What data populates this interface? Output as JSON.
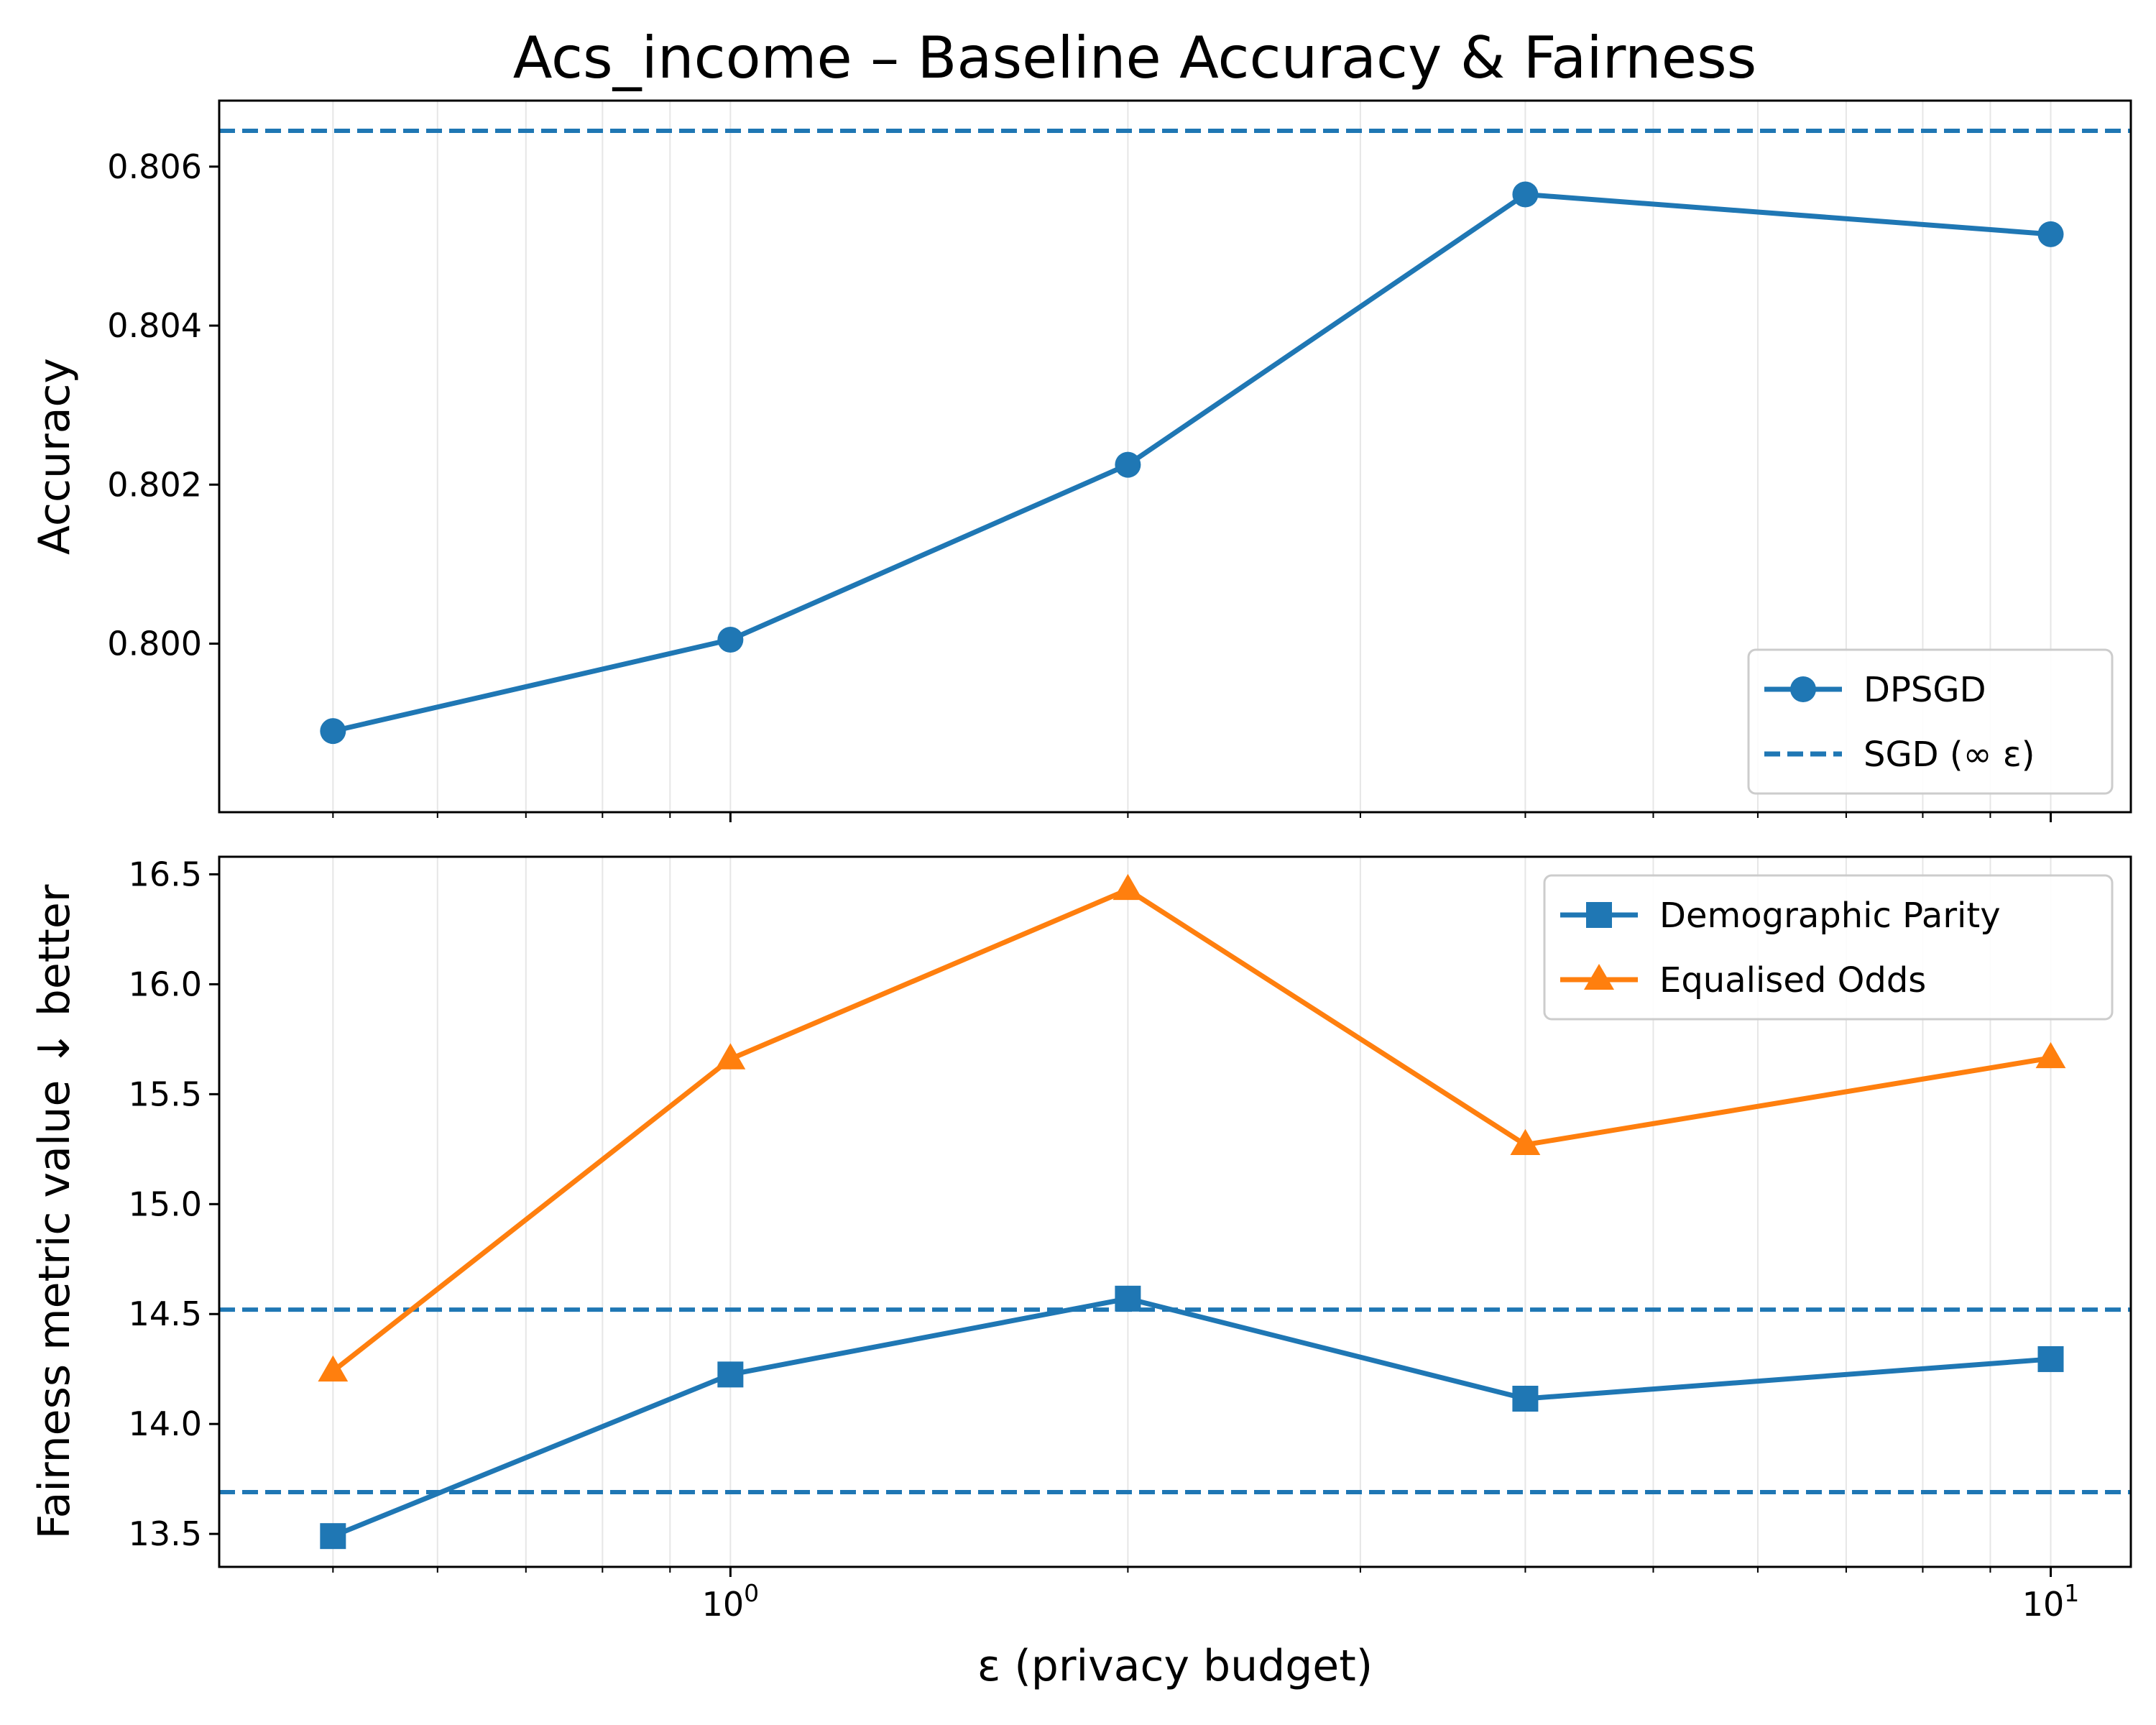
{
  "chart_data": [
    {
      "type": "line",
      "title": "Acs_income – Baseline Accuracy & Fairness",
      "xlabel": "",
      "ylabel": "Accuracy",
      "xscale": "log",
      "xlim": [
        0.41,
        11.5
      ],
      "ylim": [
        0.79788,
        0.80683
      ],
      "grid": "x-major-and-minor",
      "legend_position": "lower-right",
      "x": [
        0.5,
        1,
        2,
        4,
        10
      ],
      "series": [
        {
          "name": "DPSGD",
          "marker": "circle",
          "style": "solid",
          "color": "#1f77b4",
          "values": [
            0.7989,
            0.80005,
            0.80225,
            0.80565,
            0.80515
          ]
        }
      ],
      "reference_lines": [
        {
          "name": "SGD (∞ ε)",
          "style": "dashed",
          "color": "#1f77b4",
          "y": 0.80645
        }
      ],
      "yticks": [
        {
          "value": 0.8,
          "label": "0.800"
        },
        {
          "value": 0.802,
          "label": "0.802"
        },
        {
          "value": 0.804,
          "label": "0.804"
        },
        {
          "value": 0.806,
          "label": "0.806"
        }
      ]
    },
    {
      "type": "line",
      "title": "",
      "xlabel": "ε (privacy budget)",
      "ylabel": "Fairness metric value ↓ better",
      "xscale": "log",
      "xlim": [
        0.41,
        11.5
      ],
      "ylim": [
        13.35,
        16.58
      ],
      "grid": "x-major-and-minor",
      "legend_position": "upper-right",
      "x": [
        0.5,
        1,
        2,
        4,
        10
      ],
      "series": [
        {
          "name": "Demographic Parity",
          "marker": "square",
          "style": "solid",
          "color": "#1f77b4",
          "values": [
            13.49,
            14.225,
            14.57,
            14.115,
            14.295
          ]
        },
        {
          "name": "Equalised Odds",
          "marker": "triangle",
          "style": "solid",
          "color": "#ff7f0e",
          "values": [
            14.24,
            15.66,
            16.43,
            15.27,
            15.665
          ]
        }
      ],
      "reference_lines": [
        {
          "style": "dashed",
          "color": "#1f77b4",
          "y": 14.52
        },
        {
          "style": "dashed",
          "color": "#1f77b4",
          "y": 13.69
        }
      ],
      "yticks": [
        {
          "value": 13.5,
          "label": "13.5"
        },
        {
          "value": 14.0,
          "label": "14.0"
        },
        {
          "value": 14.5,
          "label": "14.5"
        },
        {
          "value": 15.0,
          "label": "15.0"
        },
        {
          "value": 15.5,
          "label": "15.5"
        },
        {
          "value": 16.0,
          "label": "16.0"
        },
        {
          "value": 16.5,
          "label": "16.5"
        }
      ],
      "xticks_major": [
        {
          "value": 1,
          "base": "10",
          "exp": "0"
        },
        {
          "value": 10,
          "base": "10",
          "exp": "1"
        }
      ]
    }
  ]
}
